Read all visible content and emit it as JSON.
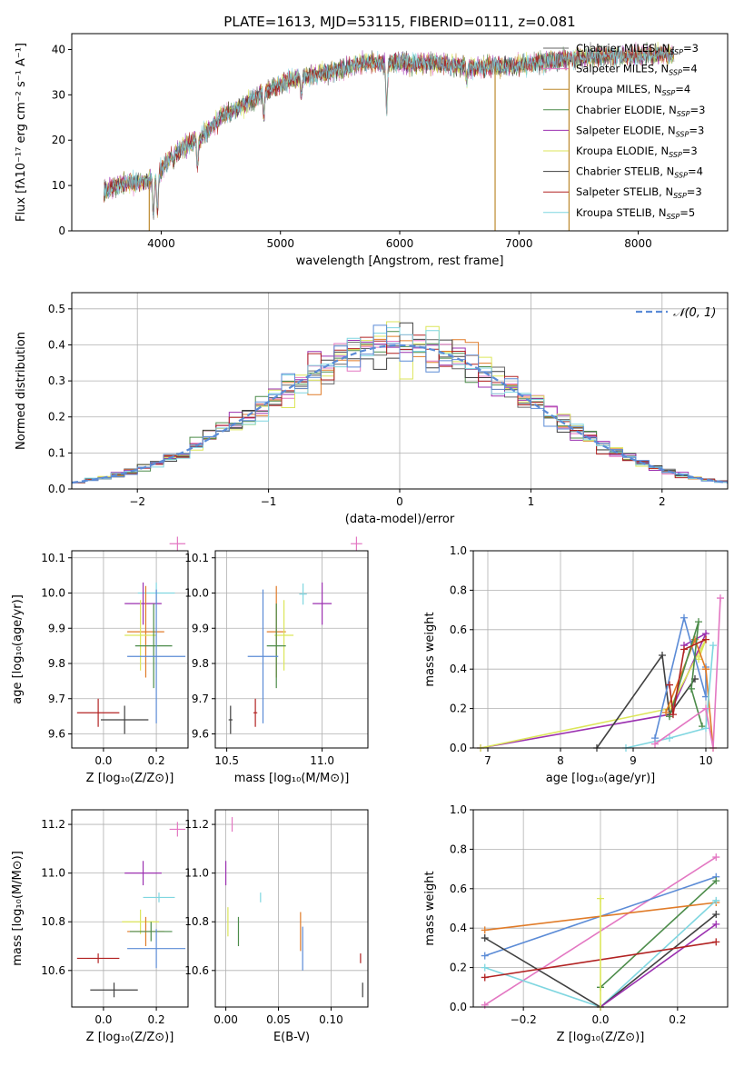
{
  "figure": {
    "title": "PLATE=1613, MJD=53115, FIBERID=0111, z=0.081"
  },
  "chart_data": [
    {
      "id": "spectrum",
      "type": "line",
      "xlabel": "wavelength [Angstrom, rest frame]",
      "ylabel": "Flux [fλ10⁻¹⁷ erg cm⁻² s⁻¹ A⁻¹]",
      "xlim": [
        3250,
        8750
      ],
      "ylim": [
        0,
        43.5
      ],
      "xticks": [
        "4000",
        "5000",
        "6000",
        "7000",
        "8000"
      ],
      "yticks": [
        "0",
        "10",
        "20",
        "30",
        "40"
      ],
      "grid": false,
      "legend_position": "top-right",
      "series": [
        {
          "name": "Chabrier MILES, N",
          "sub": "SSP",
          "suffix": "=3",
          "color": "#666666"
        },
        {
          "name": "Salpeter MILES, N",
          "sub": "SSP",
          "suffix": "=4",
          "color": "#e377c2"
        },
        {
          "name": "Kroupa MILES, N",
          "sub": "SSP",
          "suffix": "=4",
          "color": "#bd8a2e"
        },
        {
          "name": "Chabrier ELODIE, N",
          "sub": "SSP",
          "suffix": "=3",
          "color": "#4c8c4a"
        },
        {
          "name": "Salpeter ELODIE, N",
          "sub": "SSP",
          "suffix": "=3",
          "color": "#9b30b0"
        },
        {
          "name": "Kroupa ELODIE, N",
          "sub": "SSP",
          "suffix": "=3",
          "color": "#dce65a"
        },
        {
          "name": "Chabrier STELIB, N",
          "sub": "SSP",
          "suffix": "=4",
          "color": "#404040"
        },
        {
          "name": "Salpeter STELIB, N",
          "sub": "SSP",
          "suffix": "=3",
          "color": "#b22222"
        },
        {
          "name": "Kroupa STELIB, N",
          "sub": "SSP",
          "suffix": "=5",
          "color": "#7fd6e0"
        }
      ],
      "continuum": [
        [
          3520,
          9
        ],
        [
          3700,
          10.5
        ],
        [
          3900,
          11
        ],
        [
          3960,
          12
        ],
        [
          4100,
          17
        ],
        [
          4300,
          20
        ],
        [
          4500,
          25
        ],
        [
          4700,
          28
        ],
        [
          4900,
          31
        ],
        [
          5100,
          33.5
        ],
        [
          5400,
          35
        ],
        [
          5700,
          37
        ],
        [
          6000,
          37
        ],
        [
          6300,
          37
        ],
        [
          6600,
          36
        ],
        [
          7000,
          36.5
        ],
        [
          7300,
          37.5
        ],
        [
          7600,
          38.5
        ],
        [
          7900,
          38.5
        ],
        [
          8300,
          39
        ]
      ],
      "absorption_features": [
        [
          3934,
          3
        ],
        [
          3969,
          4
        ],
        [
          4102,
          15
        ],
        [
          4304,
          14
        ],
        [
          4861,
          25
        ],
        [
          5175,
          30
        ],
        [
          5890,
          26
        ],
        [
          6563,
          33
        ]
      ],
      "spikes": [
        [
          3900,
          0
        ],
        [
          6800,
          0
        ],
        [
          7420,
          0
        ]
      ]
    },
    {
      "id": "residuals",
      "type": "histogram",
      "xlabel": "(data-model)/error",
      "ylabel": "Normed distribution",
      "xlim": [
        -2.5,
        2.5
      ],
      "ylim": [
        0,
        0.545
      ],
      "xticks": [
        "−2",
        "−1",
        "0",
        "1",
        "2"
      ],
      "yticks": [
        "0.0",
        "0.1",
        "0.2",
        "0.3",
        "0.4",
        "0.5"
      ],
      "grid": true,
      "bin_width": 0.1,
      "legend": "𝒩(0, 1)",
      "gaussian": {
        "mu": 0,
        "sigma": 1,
        "color": "#5b8bd6"
      },
      "series_colors": [
        "#666666",
        "#e377c2",
        "#e07b28",
        "#4c8c4a",
        "#9b30b0",
        "#dce65a",
        "#404040",
        "#b22222",
        "#7fd6e0",
        "#5b8bd6"
      ]
    },
    {
      "id": "age_vs_Z",
      "type": "errorbar",
      "xlabel": "Z [log₁₀(Z/Z⊙)]",
      "ylabel": "age  [log₁₀(age/yr)]",
      "xlim": [
        -0.12,
        0.32
      ],
      "ylim": [
        9.56,
        10.12
      ],
      "xticks": [
        "0.0",
        "0.2"
      ],
      "yticks": [
        "9.6",
        "9.7",
        "9.8",
        "9.9",
        "10.0",
        "10.1"
      ],
      "grid": true,
      "points": [
        {
          "x": 0.28,
          "y": 10.14,
          "xerr": 0.03,
          "yerr": 0.02,
          "color": "#e377c2"
        },
        {
          "x": 0.2,
          "y": 10.0,
          "xerr": 0.07,
          "yerr": 0.03,
          "color": "#7fd6e0"
        },
        {
          "x": 0.15,
          "y": 9.97,
          "xerr": 0.07,
          "yerr": 0.06,
          "color": "#9b30b0"
        },
        {
          "x": 0.16,
          "y": 9.89,
          "xerr": 0.07,
          "yerr": 0.13,
          "color": "#e07b28"
        },
        {
          "x": 0.14,
          "y": 9.88,
          "xerr": 0.06,
          "yerr": 0.1,
          "color": "#dce65a"
        },
        {
          "x": 0.19,
          "y": 9.85,
          "xerr": 0.07,
          "yerr": 0.12,
          "color": "#4c8c4a"
        },
        {
          "x": 0.2,
          "y": 9.82,
          "xerr": 0.11,
          "yerr": 0.19,
          "color": "#5b8bd6"
        },
        {
          "x": -0.02,
          "y": 9.66,
          "xerr": 0.08,
          "yerr": 0.04,
          "color": "#b22222"
        },
        {
          "x": 0.08,
          "y": 9.64,
          "xerr": 0.09,
          "yerr": 0.04,
          "color": "#404040"
        }
      ]
    },
    {
      "id": "age_vs_mass",
      "type": "errorbar",
      "xlabel": "mass [log₁₀(M/M⊙)]",
      "ylabel": "",
      "xlim": [
        10.44,
        11.24
      ],
      "ylim": [
        9.56,
        10.12
      ],
      "xticks": [
        "10.5",
        "11.0"
      ],
      "yticks": [
        "9.6",
        "9.7",
        "9.8",
        "9.9",
        "10.0",
        "10.1"
      ],
      "grid": true,
      "points": [
        {
          "x": 11.18,
          "y": 10.14,
          "xerr": 0.03,
          "yerr": 0.02,
          "color": "#e377c2"
        },
        {
          "x": 10.9,
          "y": 9.997,
          "xerr": 0.02,
          "yerr": 0.03,
          "color": "#7fd6e0"
        },
        {
          "x": 11.0,
          "y": 9.97,
          "xerr": 0.05,
          "yerr": 0.06,
          "color": "#9b30b0"
        },
        {
          "x": 10.76,
          "y": 9.89,
          "xerr": 0.05,
          "yerr": 0.13,
          "color": "#e07b28"
        },
        {
          "x": 10.8,
          "y": 9.88,
          "xerr": 0.05,
          "yerr": 0.1,
          "color": "#dce65a"
        },
        {
          "x": 10.76,
          "y": 9.85,
          "xerr": 0.05,
          "yerr": 0.12,
          "color": "#4c8c4a"
        },
        {
          "x": 10.69,
          "y": 9.82,
          "xerr": 0.08,
          "yerr": 0.19,
          "color": "#5b8bd6"
        },
        {
          "x": 10.65,
          "y": 9.66,
          "xerr": 0.01,
          "yerr": 0.04,
          "color": "#b22222"
        },
        {
          "x": 10.52,
          "y": 9.64,
          "xerr": 0.01,
          "yerr": 0.04,
          "color": "#404040"
        }
      ]
    },
    {
      "id": "mass_weight_vs_age",
      "type": "line",
      "xlabel": "age  [log₁₀(age/yr)]",
      "ylabel": "mass weight",
      "xlim": [
        6.8,
        10.3
      ],
      "ylim": [
        0,
        1.0
      ],
      "xticks": [
        "7",
        "8",
        "9",
        "10"
      ],
      "yticks": [
        "0.0",
        "0.2",
        "0.4",
        "0.6",
        "0.8",
        "1.0"
      ],
      "grid": true,
      "series": [
        {
          "color": "#9b30b0",
          "x": [
            6.9,
            9.5,
            10.0,
            9.7
          ],
          "y": [
            0.0,
            0.17,
            0.58,
            0.52
          ]
        },
        {
          "color": "#dce65a",
          "x": [
            6.9,
            9.5,
            10.0,
            9.9
          ],
          "y": [
            0.0,
            0.2,
            0.55,
            0.45
          ]
        },
        {
          "color": "#404040",
          "x": [
            8.5,
            9.4,
            9.5,
            9.85
          ],
          "y": [
            0.0,
            0.47,
            0.17,
            0.35
          ]
        },
        {
          "color": "#5b8bd6",
          "x": [
            9.3,
            9.7,
            10.0,
            10.0
          ],
          "y": [
            0.05,
            0.66,
            0.26,
            0.41
          ]
        },
        {
          "color": "#e07b28",
          "x": [
            9.45,
            9.85,
            10.0,
            10.1
          ],
          "y": [
            0.18,
            0.55,
            0.4,
            0.0
          ]
        },
        {
          "color": "#4c8c4a",
          "x": [
            9.5,
            9.9,
            9.8,
            9.95
          ],
          "y": [
            0.16,
            0.64,
            0.3,
            0.11
          ]
        },
        {
          "color": "#b22222",
          "x": [
            9.5,
            9.55,
            9.7,
            10.0
          ],
          "y": [
            0.32,
            0.17,
            0.5,
            0.55
          ]
        },
        {
          "color": "#7fd6e0",
          "x": [
            8.9,
            9.5,
            10.0,
            10.1
          ],
          "y": [
            0.0,
            0.05,
            0.1,
            0.52
          ]
        },
        {
          "color": "#e377c2",
          "x": [
            9.3,
            10.0,
            10.1,
            10.2
          ],
          "y": [
            0.02,
            0.2,
            0.0,
            0.76
          ]
        }
      ]
    },
    {
      "id": "mass_vs_Z",
      "type": "errorbar",
      "xlabel": "Z [log₁₀(Z/Z⊙)]",
      "ylabel": "mass [log₁₀(M/M⊙)]",
      "xlim": [
        -0.12,
        0.32
      ],
      "ylim": [
        10.45,
        11.26
      ],
      "xticks": [
        "0.0",
        "0.2"
      ],
      "yticks": [
        "10.6",
        "10.8",
        "11.0",
        "11.2"
      ],
      "grid": true,
      "points": [
        {
          "x": 0.28,
          "y": 11.18,
          "xerr": 0.03,
          "yerr": 0.03,
          "color": "#e377c2"
        },
        {
          "x": 0.15,
          "y": 11.0,
          "xerr": 0.07,
          "yerr": 0.05,
          "color": "#9b30b0"
        },
        {
          "x": 0.21,
          "y": 10.9,
          "xerr": 0.06,
          "yerr": 0.02,
          "color": "#7fd6e0"
        },
        {
          "x": 0.14,
          "y": 10.8,
          "xerr": 0.07,
          "yerr": 0.05,
          "color": "#dce65a"
        },
        {
          "x": 0.16,
          "y": 10.76,
          "xerr": 0.07,
          "yerr": 0.06,
          "color": "#e07b28"
        },
        {
          "x": 0.18,
          "y": 10.76,
          "xerr": 0.08,
          "yerr": 0.04,
          "color": "#4c8c4a"
        },
        {
          "x": 0.2,
          "y": 10.69,
          "xerr": 0.11,
          "yerr": 0.08,
          "color": "#5b8bd6"
        },
        {
          "x": -0.02,
          "y": 10.65,
          "xerr": 0.08,
          "yerr": 0.02,
          "color": "#b22222"
        },
        {
          "x": 0.04,
          "y": 10.52,
          "xerr": 0.09,
          "yerr": 0.03,
          "color": "#404040"
        }
      ]
    },
    {
      "id": "mass_vs_ebv",
      "type": "errorbar",
      "xlabel": "E(B-V)",
      "ylabel": "",
      "xlim": [
        -0.01,
        0.135
      ],
      "ylim": [
        10.45,
        11.26
      ],
      "xticks": [
        "0.00",
        "0.05",
        "0.10"
      ],
      "yticks": [
        "10.6",
        "10.8",
        "11.0",
        "11.2"
      ],
      "grid": true,
      "points": [
        {
          "x": 0.006,
          "y": 11.2,
          "xerr": 0,
          "yerr": 0.03,
          "color": "#e377c2"
        },
        {
          "x": 0.0,
          "y": 11.0,
          "xerr": 0,
          "yerr": 0.05,
          "color": "#9b30b0"
        },
        {
          "x": 0.033,
          "y": 10.9,
          "xerr": 0,
          "yerr": 0.02,
          "color": "#7fd6e0"
        },
        {
          "x": 0.002,
          "y": 10.8,
          "xerr": 0,
          "yerr": 0.06,
          "color": "#dce65a"
        },
        {
          "x": 0.012,
          "y": 10.76,
          "xerr": 0,
          "yerr": 0.06,
          "color": "#4c8c4a"
        },
        {
          "x": 0.071,
          "y": 10.76,
          "xerr": 0,
          "yerr": 0.08,
          "color": "#e07b28"
        },
        {
          "x": 0.073,
          "y": 10.69,
          "xerr": 0,
          "yerr": 0.09,
          "color": "#5b8bd6"
        },
        {
          "x": 0.128,
          "y": 10.65,
          "xerr": 0,
          "yerr": 0.02,
          "color": "#b22222"
        },
        {
          "x": 0.13,
          "y": 10.52,
          "xerr": 0,
          "yerr": 0.03,
          "color": "#404040"
        }
      ]
    },
    {
      "id": "mass_weight_vs_Z",
      "type": "line",
      "xlabel": "Z [log₁₀(Z/Z⊙)]",
      "ylabel": "mass weight",
      "xlim": [
        -0.33,
        0.33
      ],
      "ylim": [
        0,
        1.0
      ],
      "xticks": [
        "−0.2",
        "0.0",
        "0.2"
      ],
      "yticks": [
        "0.0",
        "0.2",
        "0.4",
        "0.6",
        "0.8",
        "1.0"
      ],
      "grid": true,
      "series": [
        {
          "color": "#e377c2",
          "x": [
            -0.3,
            0.3
          ],
          "y": [
            0.01,
            0.76
          ]
        },
        {
          "color": "#5b8bd6",
          "x": [
            -0.3,
            0.3
          ],
          "y": [
            0.26,
            0.66
          ]
        },
        {
          "color": "#4c8c4a",
          "x": [
            0.0,
            0.3
          ],
          "y": [
            0.1,
            0.64
          ]
        },
        {
          "color": "#e07b28",
          "x": [
            -0.3,
            0.3
          ],
          "y": [
            0.39,
            0.53
          ]
        },
        {
          "color": "#7fd6e0",
          "x": [
            -0.3,
            0.0,
            0.3
          ],
          "y": [
            0.2,
            0.0,
            0.54
          ]
        },
        {
          "color": "#404040",
          "x": [
            -0.3,
            0.0,
            0.3
          ],
          "y": [
            0.35,
            0.0,
            0.47
          ]
        },
        {
          "color": "#9b30b0",
          "x": [
            0.0,
            0.3
          ],
          "y": [
            0.0,
            0.42
          ]
        },
        {
          "color": "#b22222",
          "x": [
            -0.3,
            0.3
          ],
          "y": [
            0.15,
            0.33
          ]
        },
        {
          "color": "#dce65a",
          "x": [
            0.0,
            0.0
          ],
          "y": [
            0.0,
            0.55
          ]
        }
      ]
    }
  ]
}
